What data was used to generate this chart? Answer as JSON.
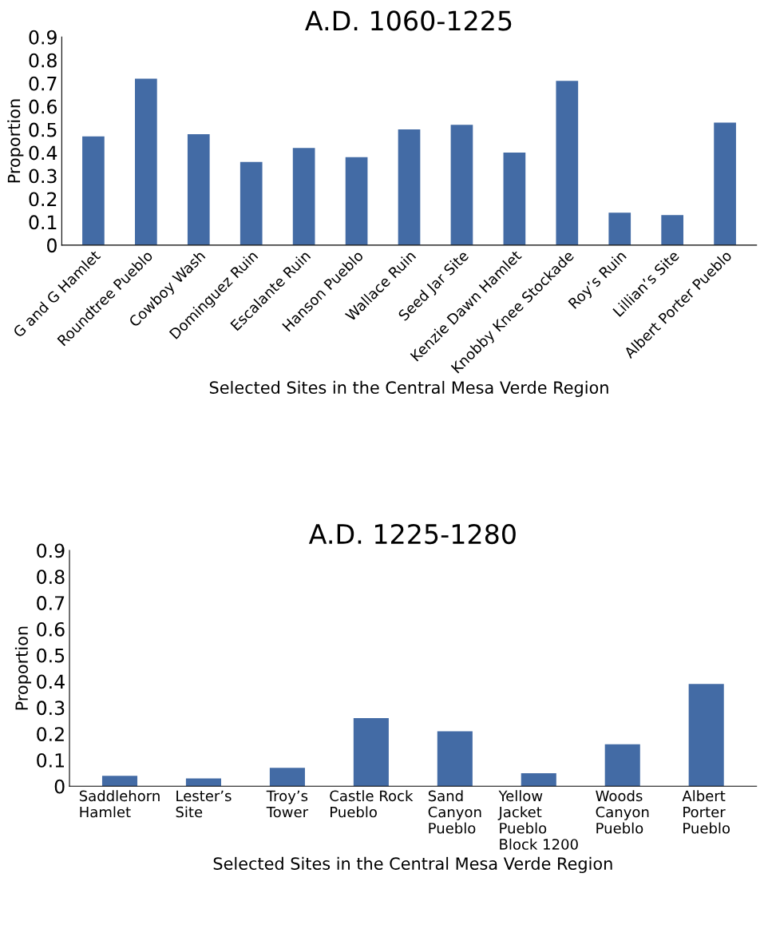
{
  "chart_data": [
    {
      "type": "bar",
      "title": "A.D. 1060-1225",
      "xlabel": "Selected Sites in the Central Mesa Verde Region",
      "ylabel": "Proportion",
      "categories": [
        "G and G Hamlet",
        "Roundtree Pueblo",
        "Cowboy Wash",
        "Dominguez Ruin",
        "Escalante Ruin",
        "Hanson Pueblo",
        "Wallace Ruin",
        "Seed Jar Site",
        "Kenzie Dawn Hamlet",
        "Knobby Knee Stockade",
        "Roy’s Ruin",
        "Lillian’s Site",
        "Albert Porter Pueblo"
      ],
      "values": [
        0.47,
        0.72,
        0.48,
        0.36,
        0.42,
        0.38,
        0.5,
        0.52,
        0.4,
        0.71,
        0.14,
        0.13,
        0.53
      ],
      "color": "#436ba5",
      "ylim": [
        0,
        0.9
      ],
      "yticks": [
        {
          "value": 0,
          "label": "0"
        },
        0.1,
        0.2,
        0.3,
        0.4,
        0.5,
        0.6,
        0.7,
        0.8,
        0.9
      ],
      "grid": false,
      "legend": false
    },
    {
      "type": "bar",
      "title": "A.D. 1225-1280",
      "xlabel": "Selected Sites in the Central Mesa Verde Region",
      "ylabel": "Proportion",
      "categories": [
        "Saddlehorn\nHamlet",
        "Lester’s\nSite",
        "Troy’s\nTower",
        "Castle Rock\nPueblo",
        "Sand\nCanyon\nPueblo",
        "Yellow\nJacket\nPueblo\nBlock 1200",
        "Woods\nCanyon\nPueblo",
        "Albert\nPorter\nPueblo"
      ],
      "values": [
        0.04,
        0.03,
        0.07,
        0.26,
        0.21,
        0.05,
        0.16,
        0.39
      ],
      "color": "#436ba5",
      "ylim": [
        0,
        0.9
      ],
      "yticks": [
        {
          "value": 0,
          "label": "0"
        },
        0.1,
        0.2,
        0.3,
        0.4,
        0.5,
        0.6,
        0.7,
        0.8,
        0.9
      ],
      "grid": false,
      "legend": false
    }
  ]
}
